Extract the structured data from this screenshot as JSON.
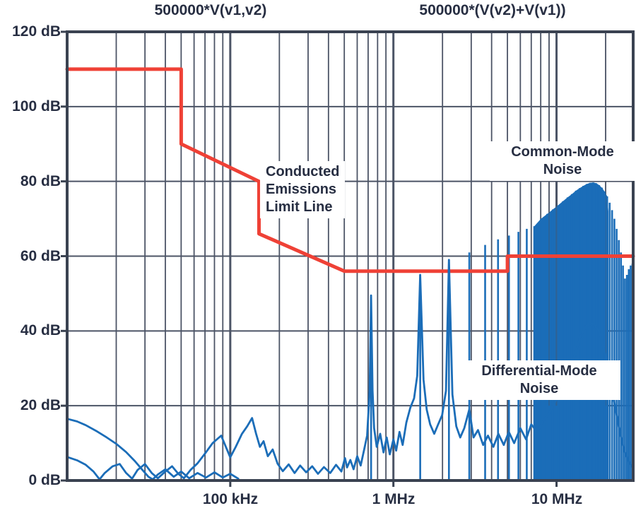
{
  "figure": {
    "background": "#ffffff"
  },
  "colors": {
    "background": "#ffffff",
    "grid": "#4c5466",
    "border": "#3a4251",
    "text": "#272e42",
    "limit_line": "#ef4136",
    "noise_trace": "#1b6db8"
  },
  "chart_data": {
    "type": "line",
    "title_expressions": {
      "left": "500000*V(v1,v2)",
      "right": "500000*(V(v2)+V(v1))"
    },
    "x_axis": {
      "scale": "log",
      "unit": "Hz",
      "min": 10000,
      "max": 29500000,
      "tick_labels": [
        "100 kHz",
        "1 MHz",
        "10 MHz"
      ],
      "tick_hz": [
        100000,
        1000000,
        10000000
      ],
      "grid": "log-minor-and-major"
    },
    "y_axis": {
      "unit": "dB",
      "min": 0,
      "max": 120,
      "tick_step": 20,
      "tick_labels": [
        "120 dB",
        "100 dB",
        "80 dB",
        "60 dB",
        "40 dB",
        "20 dB",
        "0 dB"
      ],
      "tick_values": [
        120,
        100,
        80,
        60,
        40,
        20,
        0
      ]
    },
    "series": [
      {
        "name": "Conducted Emissions Limit Line",
        "kind": "limit",
        "render": "line",
        "color_key": "limit_line",
        "points": [
          [
            10000,
            110
          ],
          [
            50000,
            110
          ],
          [
            50000,
            90
          ],
          [
            150000,
            80
          ],
          [
            150000,
            66
          ],
          [
            500000,
            56
          ],
          [
            5000000,
            56
          ],
          [
            5000000,
            60
          ],
          [
            29500000,
            60
          ]
        ]
      },
      {
        "name": "Differential-Mode Noise",
        "kind": "noise",
        "render": "line",
        "color_key": "noise_trace",
        "points": [
          [
            10000,
            6.3
          ],
          [
            11500,
            5.4
          ],
          [
            13000,
            4.2
          ],
          [
            14500,
            2.4
          ],
          [
            15800,
            0.3
          ],
          [
            17000,
            2.0
          ],
          [
            19000,
            3.8
          ],
          [
            21000,
            4.4
          ],
          [
            23000,
            2.0
          ],
          [
            25000,
            0.5
          ],
          [
            27000,
            2.8
          ],
          [
            30000,
            4.4
          ],
          [
            33000,
            2.0
          ],
          [
            36000,
            0.6
          ],
          [
            40000,
            2.4
          ],
          [
            44000,
            3.8
          ],
          [
            48000,
            1.8
          ],
          [
            52000,
            0.6
          ],
          [
            57000,
            2.8
          ],
          [
            63000,
            4.6
          ],
          [
            70000,
            7.2
          ],
          [
            78000,
            10.0
          ],
          [
            88000,
            12.0
          ],
          [
            95000,
            8.5
          ],
          [
            100000,
            6.2
          ],
          [
            108000,
            9.0
          ],
          [
            118000,
            12.5
          ],
          [
            127000,
            14.5
          ],
          [
            136000,
            16.7
          ],
          [
            144000,
            12.5
          ],
          [
            152000,
            9.0
          ],
          [
            160000,
            10.5
          ],
          [
            170000,
            6.5
          ],
          [
            182000,
            8.3
          ],
          [
            195000,
            4.5
          ],
          [
            210000,
            2.5
          ],
          [
            228000,
            4.3
          ],
          [
            248000,
            2.0
          ],
          [
            268000,
            4.0
          ],
          [
            292000,
            2.2
          ],
          [
            318000,
            3.8
          ],
          [
            345000,
            1.8
          ],
          [
            375000,
            3.6
          ],
          [
            410000,
            2.0
          ],
          [
            445000,
            4.2
          ],
          [
            480000,
            2.4
          ],
          [
            505000,
            6.0
          ],
          [
            520000,
            3.5
          ],
          [
            545000,
            5.5
          ],
          [
            570000,
            3.0
          ],
          [
            600000,
            6.5
          ],
          [
            630000,
            4.0
          ],
          [
            660000,
            8.0
          ],
          [
            690000,
            12.0
          ],
          [
            715000,
            24.0
          ],
          [
            730000,
            49.5
          ],
          [
            745000,
            24.0
          ],
          [
            762000,
            14.0
          ],
          [
            790000,
            9.0
          ],
          [
            830000,
            12.5
          ],
          [
            870000,
            7.5
          ],
          [
            910000,
            11.5
          ],
          [
            950000,
            7.0
          ],
          [
            1000000,
            11.0
          ],
          [
            1040000,
            8.0
          ],
          [
            1090000,
            13.0
          ],
          [
            1140000,
            9.5
          ],
          [
            1200000,
            15.5
          ],
          [
            1270000,
            19.5
          ],
          [
            1340000,
            22.0
          ],
          [
            1400000,
            28.0
          ],
          [
            1460000,
            55.0
          ],
          [
            1530000,
            27.0
          ],
          [
            1600000,
            19.0
          ],
          [
            1680000,
            15.0
          ],
          [
            1780000,
            12.5
          ],
          [
            1880000,
            15.0
          ],
          [
            1990000,
            17.5
          ],
          [
            2100000,
            24.0
          ],
          [
            2190000,
            59.0
          ],
          [
            2300000,
            23.0
          ],
          [
            2430000,
            14.5
          ],
          [
            2570000,
            11.5
          ],
          [
            2720000,
            14.0
          ],
          [
            2920000,
            19.0
          ],
          [
            3100000,
            11.5
          ],
          [
            3300000,
            13.5
          ],
          [
            3550000,
            9.5
          ],
          [
            3800000,
            12.0
          ],
          [
            4100000,
            9.0
          ],
          [
            4400000,
            12.5
          ],
          [
            4750000,
            9.5
          ],
          [
            5100000,
            13.0
          ],
          [
            5500000,
            10.0
          ],
          [
            6000000,
            14.0
          ],
          [
            6500000,
            11.0
          ],
          [
            7000000,
            15.0
          ],
          [
            7600000,
            13.0
          ],
          [
            8300000,
            16.0
          ],
          [
            9000000,
            18.0
          ],
          [
            9800000,
            21.0
          ],
          [
            10700000,
            24.0
          ],
          [
            11700000,
            28.0
          ],
          [
            12800000,
            33.0
          ],
          [
            14000000,
            38.5
          ],
          [
            15300000,
            41.5
          ],
          [
            16700000,
            42.0
          ],
          [
            18200000,
            40.0
          ],
          [
            19800000,
            34.0
          ],
          [
            21300000,
            27.0
          ],
          [
            22800000,
            20.0
          ],
          [
            24400000,
            13.0
          ],
          [
            26000000,
            8.0
          ],
          [
            27800000,
            5.0
          ],
          [
            29300000,
            3.5
          ]
        ]
      },
      {
        "name": "Common-Mode Noise low-frequency arc",
        "kind": "noise",
        "render": "line",
        "color_key": "noise_trace",
        "points": [
          [
            10000,
            16.5
          ],
          [
            11500,
            15.8
          ],
          [
            13000,
            14.8
          ],
          [
            15000,
            13.3
          ],
          [
            17500,
            11.5
          ],
          [
            20000,
            9.8
          ],
          [
            23000,
            7.6
          ],
          [
            26000,
            5.2
          ],
          [
            29000,
            2.8
          ],
          [
            31500,
            1.0
          ],
          [
            33500,
            0.3
          ],
          [
            36000,
            1.6
          ],
          [
            40000,
            3.0
          ],
          [
            45000,
            1.0
          ],
          [
            50000,
            2.4
          ],
          [
            56000,
            0.6
          ],
          [
            63000,
            2.0
          ],
          [
            71000,
            0.8
          ],
          [
            80000,
            2.2
          ],
          [
            90000,
            0.8
          ],
          [
            100000,
            1.8
          ],
          [
            112000,
            0.5
          ]
        ]
      },
      {
        "name": "Common-Mode Noise harmonic comb (~730 kHz harmonics)",
        "kind": "noise",
        "render": "spikes",
        "color_key": "noise_trace",
        "points": [
          [
            730000,
            49.5
          ],
          [
            1460000,
            55
          ],
          [
            2190000,
            59
          ],
          [
            2920000,
            61
          ],
          [
            3650000,
            63
          ],
          [
            4380000,
            64.5
          ],
          [
            5110000,
            65.5
          ],
          [
            5840000,
            66.5
          ],
          [
            6570000,
            67.3
          ],
          [
            7300000,
            68
          ],
          [
            8030000,
            70
          ],
          [
            8760000,
            71.3
          ],
          [
            9490000,
            72.5
          ],
          [
            10220000,
            73.6
          ],
          [
            10950000,
            74.7
          ],
          [
            11680000,
            75.7
          ],
          [
            12410000,
            76.6
          ],
          [
            13140000,
            77.5
          ],
          [
            13870000,
            78.2
          ],
          [
            14600000,
            78.8
          ],
          [
            15330000,
            79.3
          ],
          [
            16060000,
            79.6
          ],
          [
            16790000,
            79.7
          ],
          [
            17520000,
            79.5
          ],
          [
            18250000,
            79.0
          ],
          [
            18980000,
            78.3
          ],
          [
            19710000,
            77.3
          ],
          [
            20440000,
            76.0
          ],
          [
            21170000,
            74.3
          ],
          [
            21900000,
            72.3
          ],
          [
            22630000,
            70.0
          ],
          [
            23360000,
            67.3
          ],
          [
            24090000,
            64.3
          ],
          [
            24820000,
            61.0
          ],
          [
            25550000,
            57.5
          ],
          [
            26280000,
            54.0
          ],
          [
            27010000,
            55.0
          ],
          [
            27740000,
            56.5
          ],
          [
            28470000,
            57.5
          ],
          [
            29200000,
            58.0
          ]
        ]
      },
      {
        "name": "Common-Mode Noise dense envelope",
        "kind": "noise",
        "render": "area",
        "color_key": "noise_trace",
        "points": [
          [
            7300000,
            68
          ],
          [
            8030000,
            70
          ],
          [
            8760000,
            71.3
          ],
          [
            9490000,
            72.5
          ],
          [
            10220000,
            73.6
          ],
          [
            10950000,
            74.7
          ],
          [
            11680000,
            75.7
          ],
          [
            12410000,
            76.6
          ],
          [
            13140000,
            77.5
          ],
          [
            13870000,
            78.2
          ],
          [
            14600000,
            78.8
          ],
          [
            15330000,
            79.3
          ],
          [
            16060000,
            79.6
          ],
          [
            16790000,
            79.7
          ],
          [
            17520000,
            79.5
          ],
          [
            18250000,
            79.0
          ],
          [
            18980000,
            78.3
          ],
          [
            19710000,
            77.3
          ],
          [
            20440000,
            76.0
          ],
          [
            20800000,
            72.0
          ]
        ]
      }
    ],
    "annotations": {
      "conducted": {
        "l1": "Conducted",
        "l2": "Emissions",
        "l3": "Limit Line"
      },
      "common_mode": {
        "l1": "Common-Mode",
        "l2": "Noise"
      },
      "differential_mode": {
        "l1": "Differential-Mode",
        "l2": "Noise"
      }
    },
    "legend": "none"
  }
}
